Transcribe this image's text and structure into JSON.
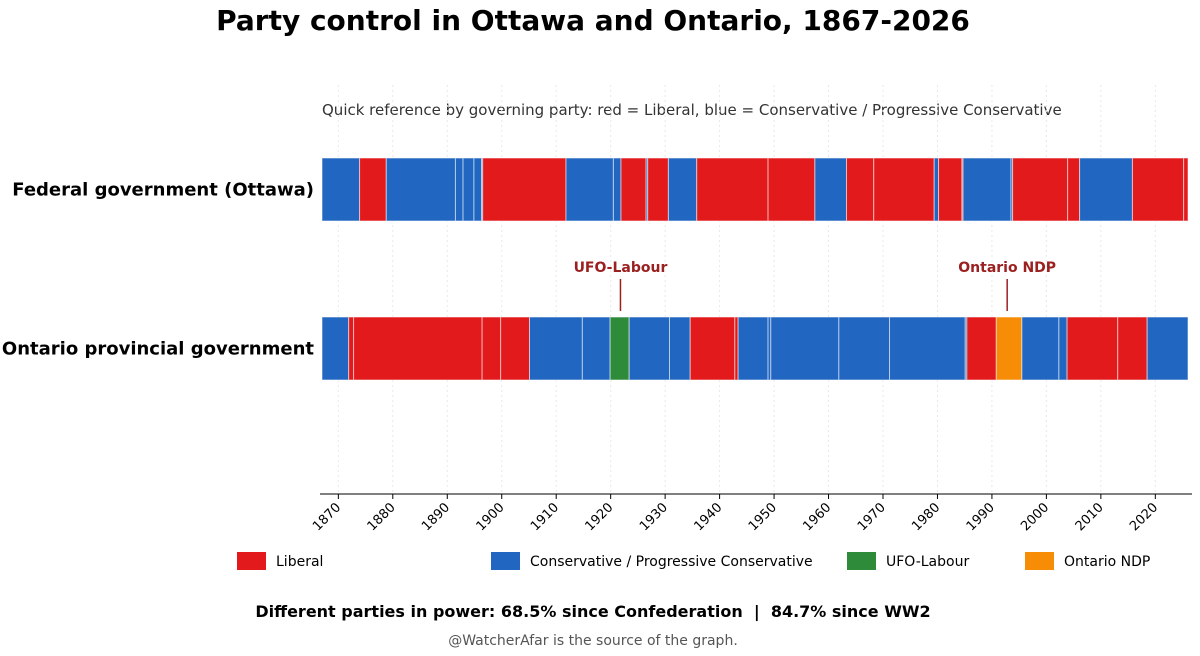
{
  "chart_data": {
    "type": "timeline",
    "title": "Party control in Ottawa and Ontario, 1867-2026",
    "subtitle": "Quick reference by governing party: red = Liberal, blue = Conservative / Progressive Conservative",
    "x_range": [
      1867,
      2026
    ],
    "x_ticks": [
      1870,
      1880,
      1890,
      1900,
      1910,
      1920,
      1930,
      1940,
      1950,
      1960,
      1970,
      1980,
      1990,
      2000,
      2010,
      2020
    ],
    "grid": true,
    "legend_placement": "bottom",
    "parties": [
      {
        "key": "liberal",
        "label": "Liberal",
        "color": "#e31a1c"
      },
      {
        "key": "conservative",
        "label": "Conservative / Progressive Conservative",
        "color": "#2166c1"
      },
      {
        "key": "ufo",
        "label": "UFO-Labour",
        "color": "#2e8b3a"
      },
      {
        "key": "ndp",
        "label": "Ontario NDP",
        "color": "#f78c06"
      }
    ],
    "rows": [
      {
        "label": "Federal government (Ottawa)",
        "segments": [
          {
            "start": 1867,
            "end": 1873.9,
            "party": "conservative"
          },
          {
            "start": 1873.9,
            "end": 1878.8,
            "party": "liberal"
          },
          {
            "start": 1878.8,
            "end": 1891.5,
            "party": "conservative"
          },
          {
            "start": 1891.5,
            "end": 1892.9,
            "party": "conservative"
          },
          {
            "start": 1892.9,
            "end": 1894.9,
            "party": "conservative"
          },
          {
            "start": 1894.9,
            "end": 1896.3,
            "party": "conservative"
          },
          {
            "start": 1896.3,
            "end": 1896.5,
            "party": "conservative"
          },
          {
            "start": 1896.5,
            "end": 1911.8,
            "party": "liberal"
          },
          {
            "start": 1911.8,
            "end": 1920.5,
            "party": "conservative"
          },
          {
            "start": 1920.5,
            "end": 1921.9,
            "party": "conservative"
          },
          {
            "start": 1921.9,
            "end": 1926.5,
            "party": "liberal"
          },
          {
            "start": 1926.5,
            "end": 1926.8,
            "party": "conservative"
          },
          {
            "start": 1926.8,
            "end": 1930.6,
            "party": "liberal"
          },
          {
            "start": 1930.6,
            "end": 1935.8,
            "party": "conservative"
          },
          {
            "start": 1935.8,
            "end": 1948.9,
            "party": "liberal"
          },
          {
            "start": 1948.9,
            "end": 1957.5,
            "party": "liberal"
          },
          {
            "start": 1957.5,
            "end": 1963.3,
            "party": "conservative"
          },
          {
            "start": 1963.3,
            "end": 1968.3,
            "party": "liberal"
          },
          {
            "start": 1968.3,
            "end": 1979.4,
            "party": "liberal"
          },
          {
            "start": 1979.4,
            "end": 1980.2,
            "party": "conservative"
          },
          {
            "start": 1980.2,
            "end": 1984.5,
            "party": "liberal"
          },
          {
            "start": 1984.5,
            "end": 1984.7,
            "party": "liberal"
          },
          {
            "start": 1984.7,
            "end": 1993.5,
            "party": "conservative"
          },
          {
            "start": 1993.5,
            "end": 1993.8,
            "party": "conservative"
          },
          {
            "start": 1993.8,
            "end": 2003.9,
            "party": "liberal"
          },
          {
            "start": 2003.9,
            "end": 2006.1,
            "party": "liberal"
          },
          {
            "start": 2006.1,
            "end": 2015.8,
            "party": "conservative"
          },
          {
            "start": 2015.8,
            "end": 2025.2,
            "party": "liberal"
          },
          {
            "start": 2025.2,
            "end": 2026,
            "party": "liberal"
          }
        ]
      },
      {
        "label": "Ontario provincial government",
        "segments": [
          {
            "start": 1867,
            "end": 1871.9,
            "party": "conservative"
          },
          {
            "start": 1871.9,
            "end": 1872.8,
            "party": "liberal"
          },
          {
            "start": 1872.8,
            "end": 1896.4,
            "party": "liberal"
          },
          {
            "start": 1896.4,
            "end": 1899.8,
            "party": "liberal"
          },
          {
            "start": 1899.8,
            "end": 1905.1,
            "party": "liberal"
          },
          {
            "start": 1905.1,
            "end": 1914.8,
            "party": "conservative"
          },
          {
            "start": 1914.8,
            "end": 1919.9,
            "party": "conservative"
          },
          {
            "start": 1919.9,
            "end": 1923.4,
            "party": "ufo"
          },
          {
            "start": 1923.4,
            "end": 1930.8,
            "party": "conservative"
          },
          {
            "start": 1930.8,
            "end": 1934.6,
            "party": "conservative"
          },
          {
            "start": 1934.6,
            "end": 1942.8,
            "party": "liberal"
          },
          {
            "start": 1942.8,
            "end": 1943.4,
            "party": "liberal"
          },
          {
            "start": 1943.4,
            "end": 1948.9,
            "party": "conservative"
          },
          {
            "start": 1948.9,
            "end": 1949.4,
            "party": "conservative"
          },
          {
            "start": 1949.4,
            "end": 1961.9,
            "party": "conservative"
          },
          {
            "start": 1961.9,
            "end": 1971.2,
            "party": "conservative"
          },
          {
            "start": 1971.2,
            "end": 1985.1,
            "party": "conservative"
          },
          {
            "start": 1985.1,
            "end": 1985.4,
            "party": "conservative"
          },
          {
            "start": 1985.4,
            "end": 1990.8,
            "party": "liberal"
          },
          {
            "start": 1990.8,
            "end": 1995.5,
            "party": "ndp"
          },
          {
            "start": 1995.5,
            "end": 2002.3,
            "party": "conservative"
          },
          {
            "start": 2002.3,
            "end": 2003.8,
            "party": "conservative"
          },
          {
            "start": 2003.8,
            "end": 2013.1,
            "party": "liberal"
          },
          {
            "start": 2013.1,
            "end": 2018.5,
            "party": "liberal"
          },
          {
            "start": 2018.5,
            "end": 2026,
            "party": "conservative"
          }
        ]
      }
    ],
    "annotations": [
      {
        "text": "UFO-Labour",
        "x": 1921.8,
        "row": 1
      },
      {
        "text": "Ontario NDP",
        "x": 1992.8,
        "row": 1
      }
    ],
    "summary": "Different parties in power: 68.5% since Confederation  |  84.7% since WW2",
    "source": "@WatcherAfar is the source of the graph."
  }
}
